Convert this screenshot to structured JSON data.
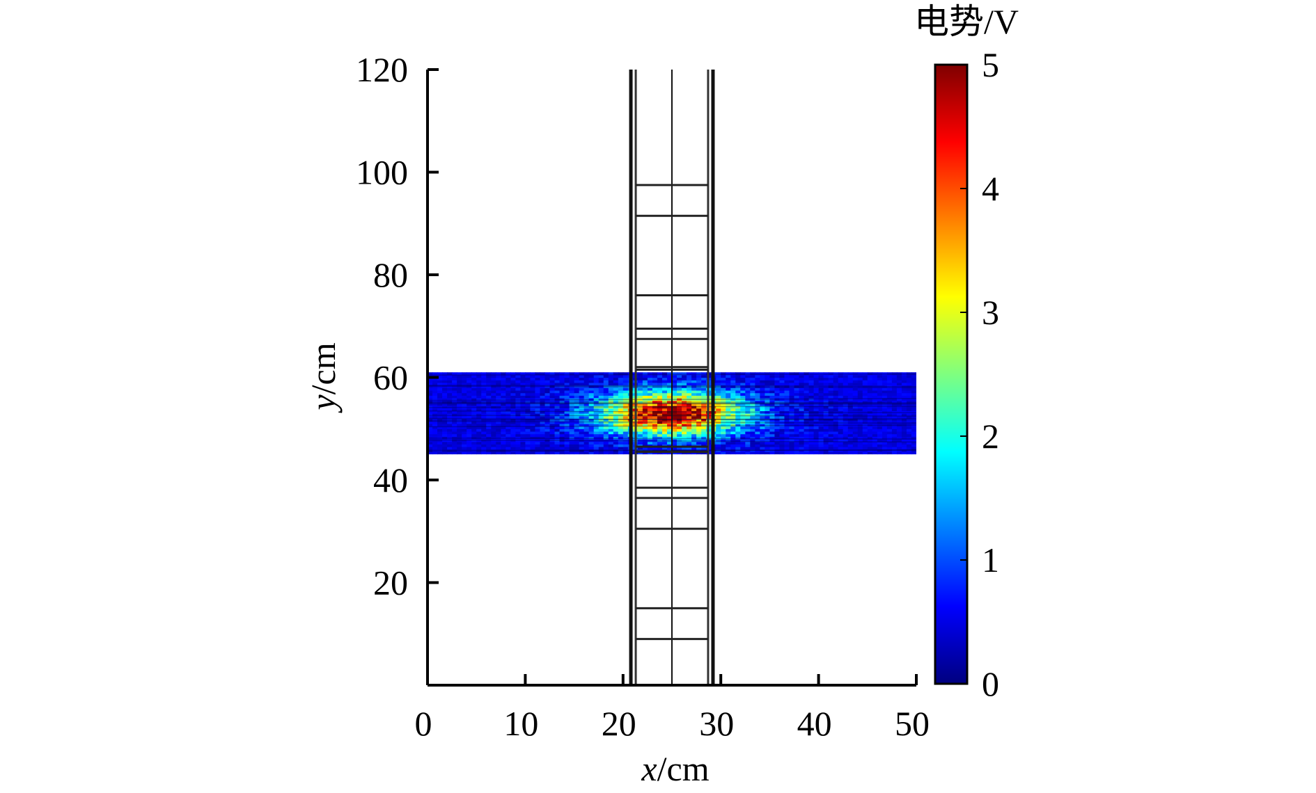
{
  "chart_data": {
    "type": "heatmap",
    "title": "",
    "xlabel": {
      "var": "x",
      "unit": "/cm"
    },
    "ylabel": {
      "var": "y",
      "unit": "/cm"
    },
    "xlim": [
      0,
      50
    ],
    "ylim": [
      0,
      120
    ],
    "xticks": [
      {
        "value": 0,
        "label": "0"
      },
      {
        "value": 10,
        "label": "10"
      },
      {
        "value": 20,
        "label": "20"
      },
      {
        "value": 30,
        "label": "30"
      },
      {
        "value": 40,
        "label": "40"
      },
      {
        "value": 50,
        "label": "50"
      }
    ],
    "yticks": [
      {
        "value": 20,
        "label": "20"
      },
      {
        "value": 40,
        "label": "40"
      },
      {
        "value": 60,
        "label": "60"
      },
      {
        "value": 80,
        "label": "80"
      },
      {
        "value": 100,
        "label": "100"
      },
      {
        "value": 120,
        "label": "120"
      }
    ],
    "colorbar": {
      "title": "电势/V",
      "range": [
        0,
        5
      ],
      "ticks": [
        {
          "value": 0,
          "label": "0"
        },
        {
          "value": 1,
          "label": "1"
        },
        {
          "value": 2,
          "label": "2"
        },
        {
          "value": 3,
          "label": "3"
        },
        {
          "value": 4,
          "label": "4"
        },
        {
          "value": 5,
          "label": "5"
        }
      ],
      "colormap": "jet",
      "stops": [
        "#00007f",
        "#0000ff",
        "#007fff",
        "#00ffff",
        "#7fff7f",
        "#ffff00",
        "#ff7f00",
        "#ff0000",
        "#7f0000"
      ]
    },
    "field_band": {
      "x_range": [
        0,
        50
      ],
      "y_range": [
        45,
        61
      ],
      "background_potential": 0.5,
      "peak_potential": 5,
      "peak_location": {
        "x": 25,
        "y": 53
      }
    },
    "structure": {
      "outer_walls_x": [
        20.8,
        29.2
      ],
      "inner_walls_x": [
        21.3,
        28.7
      ],
      "center_line_x": 25,
      "crossbars_y": [
        9,
        15,
        30.5,
        36.5,
        38.5,
        45.5,
        46.5,
        61.5,
        62,
        67.5,
        69.5,
        76,
        91.5,
        97.5
      ]
    }
  }
}
